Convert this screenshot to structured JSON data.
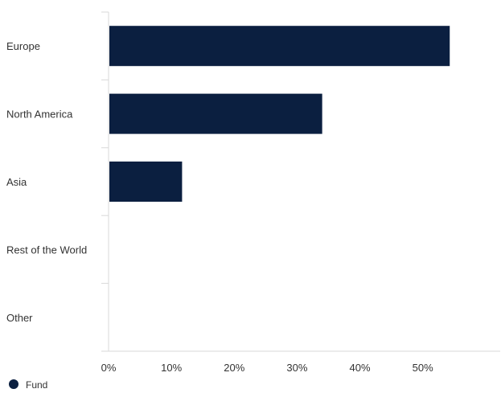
{
  "chart_data": {
    "type": "bar",
    "orientation": "horizontal",
    "categories": [
      "Europe",
      "North America",
      "Asia",
      "Rest of the World",
      "Other"
    ],
    "series": [
      {
        "name": "Fund",
        "values": [
          54.3,
          34.0,
          11.7,
          0,
          0
        ],
        "color": "#0b1f40"
      }
    ],
    "x_ticks": [
      "0%",
      "10%",
      "20%",
      "30%",
      "40%",
      "50%"
    ],
    "xlim": [
      0,
      59.9
    ],
    "grid": false,
    "legend": {
      "position": "bottom-left"
    },
    "colors": {
      "bar": "#0b1f40",
      "axis": "#d9d9d9",
      "text": "#333333"
    }
  }
}
